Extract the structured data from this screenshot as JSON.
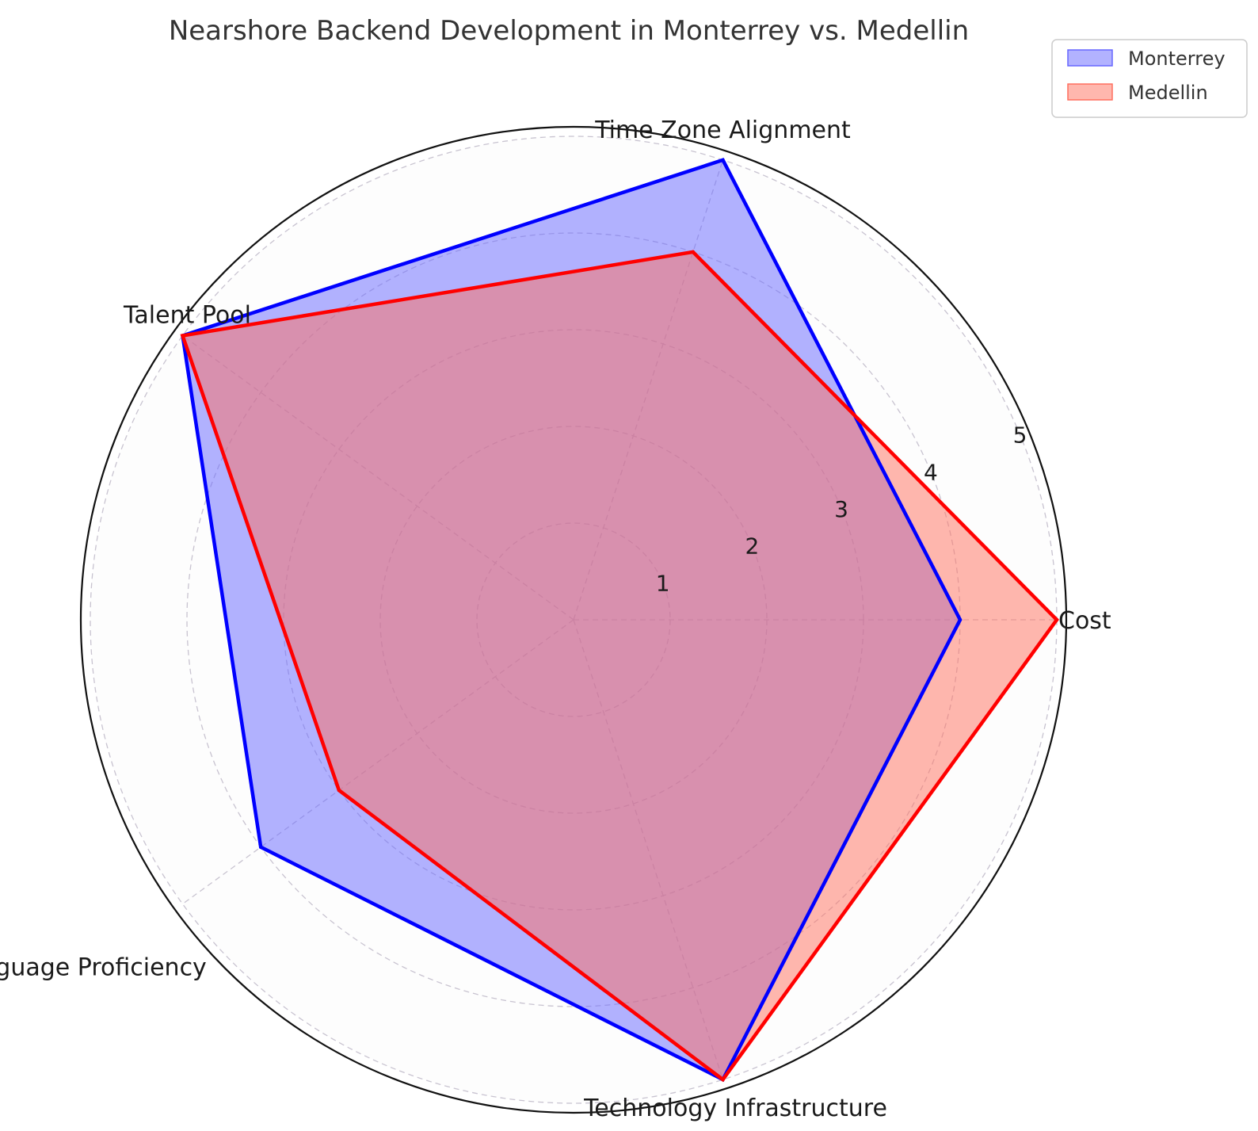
{
  "chart_data": {
    "type": "radar",
    "title": "Nearshore Backend Development in Monterrey vs. Medellin",
    "categories": [
      "Cost",
      "Time Zone Alignment",
      "Talent Pool",
      "Language Proficiency",
      "Technology Infrastructure"
    ],
    "rlim": [
      0,
      5
    ],
    "rticks": [
      1,
      2,
      3,
      4,
      5
    ],
    "rtick_labels": [
      "1",
      "2",
      "3",
      "4",
      "5"
    ],
    "grid": true,
    "legend_position": "top-right",
    "series": [
      {
        "name": "Monterrey",
        "values": [
          4,
          5,
          5,
          4,
          5
        ],
        "color": "#0000ff",
        "fill": "#6666ff"
      },
      {
        "name": "Medellin",
        "values": [
          5,
          4,
          5,
          3,
          5
        ],
        "color": "#ff0000",
        "fill": "#ff6f5e"
      }
    ]
  }
}
